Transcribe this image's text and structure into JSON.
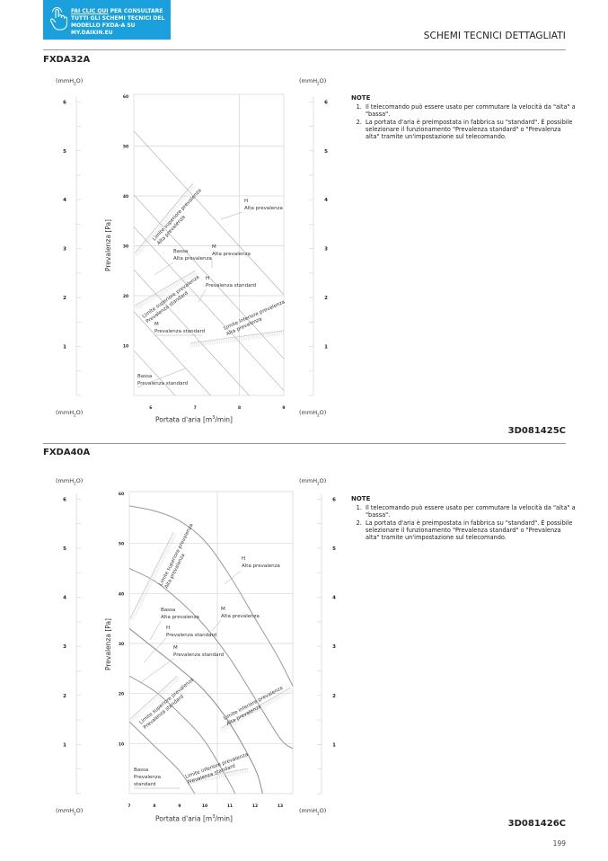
{
  "banner": {
    "link_text": "FAI CLIC QUI",
    "line1_rest": " PER CONSULTARE",
    "line2": "TUTTI GLI SCHEMI TECNICI DEL",
    "line3": "MODELLO FXDA-A SU MY.DAIKIN.EU",
    "icon": "hand-pointer-icon",
    "color": "#1aa0dc"
  },
  "header": {
    "section_title": "SCHEMI TECNICI DETTAGLIATI"
  },
  "page_number": "199",
  "sections": [
    {
      "model": "FXDA32A",
      "code": "3D081425C",
      "unit_label": "(mmH",
      "unit_sub": "2",
      "unit_end": "O)",
      "notes": {
        "title": "NOTE",
        "items": [
          "Il telecomando può essere usato per commutare la velocità da \"alta\" a \"bassa\".",
          "La portata d'aria è preimpostata in fabbrica su \"standard\". È possibile selezionare il funzionamento \"Prevalenza standard\" o \"Prevalenza alta\" tramite un'impostazione sul telecomando."
        ]
      }
    },
    {
      "model": "FXDA40A",
      "code": "3D081426C",
      "unit_label": "(mmH",
      "unit_sub": "2",
      "unit_end": "O)",
      "notes": {
        "title": "NOTE",
        "items": [
          "Il telecomando può essere usato per commutare la velocità da \"alta\" a \"bassa\".",
          "La portata d'aria è preimpostata in fabbrica su \"standard\". È possibile selezionare il funzionamento \"Prevalenza standard\" o \"Prevalenza alta\" tramite un'impostazione sul telecomando."
        ]
      }
    }
  ],
  "chart_data": [
    {
      "type": "line",
      "title": "FXDA32A",
      "xlabel": "Portata d'aria [m",
      "xlabel_sup": "3",
      "xlabel_end": "/min]",
      "ylabel": "Prevalenza [Pa]",
      "xlim": [
        5.62,
        9
      ],
      "ylim": [
        0,
        60
      ],
      "x_ticks": [
        "6",
        "7",
        "8",
        "9"
      ],
      "y_ticks": [
        "10",
        "20",
        "30",
        "40",
        "50",
        "60"
      ],
      "y2_ticks": [
        "1",
        "2",
        "3",
        "4",
        "5",
        "6"
      ],
      "grid": true,
      "grid_x": [
        8
      ],
      "grid_y": [
        20,
        30,
        40,
        50
      ],
      "curve_color": "#b5b5b5",
      "series": [
        {
          "label": [
            "H",
            "Alta prevalenza"
          ],
          "points": [
            [
              5.62,
              53
            ],
            [
              9,
              20.2
            ]
          ]
        },
        {
          "label": [
            "M",
            "Alta prevalenza"
          ],
          "points": [
            [
              5.62,
              40.2
            ],
            [
              9,
              7.4
            ]
          ]
        },
        {
          "label": [
            "Bassa",
            "Alta prevalenza"
          ],
          "points": [
            [
              5.62,
              33.8
            ],
            [
              9,
              1
            ]
          ]
        },
        {
          "label": [
            "H",
            "Prevalenza standard"
          ],
          "points": [
            [
              5.62,
              25.2
            ],
            [
              8.22,
              0
            ]
          ]
        },
        {
          "label": [
            "M",
            "Prevalenza standard"
          ],
          "points": [
            [
              5.62,
              16.8
            ],
            [
              7.35,
              0
            ]
          ]
        },
        {
          "label": [
            "Bassa",
            "Prevalenza standard"
          ],
          "points": [
            [
              5.62,
              9
            ],
            [
              6.55,
              0
            ]
          ]
        }
      ],
      "limits": [
        {
          "label": [
            "Limite superiore prevalenza",
            "Alta prevalenza"
          ],
          "points": [
            [
              5.64,
              28.5
            ],
            [
              6.95,
              42.5
            ]
          ]
        },
        {
          "label": [
            "Limite superiore prevalenza",
            "Prevalenza standard"
          ],
          "points": [
            [
              5.64,
              18
            ],
            [
              7,
              25
            ]
          ]
        },
        {
          "label": [
            "Limite inferiore prevalenza",
            "Alta prevalenza"
          ],
          "points": [
            [
              6.9,
              10.5
            ],
            [
              9,
              13
            ]
          ]
        }
      ]
    },
    {
      "type": "line",
      "title": "FXDA40A",
      "xlabel": "Portata d'aria [m",
      "xlabel_sup": "3",
      "xlabel_end": "/min]",
      "ylabel": "Prevalenza [Pa]",
      "xlim": [
        7,
        13.5
      ],
      "ylim": [
        0,
        60
      ],
      "x_ticks": [
        "7",
        "8",
        "9",
        "10",
        "11",
        "12",
        "13"
      ],
      "y_ticks": [
        "10",
        "20",
        "30",
        "40",
        "50",
        "60"
      ],
      "y2_ticks": [
        "1",
        "2",
        "3",
        "4",
        "5",
        "6"
      ],
      "grid": true,
      "grid_x": [
        10.5
      ],
      "grid_y": [
        10,
        20,
        30,
        40,
        50
      ],
      "curve_color": "#9a9a9a",
      "series": [
        {
          "label": [
            "H",
            "Alta prevalenza"
          ],
          "points": [
            [
              7,
              57.5
            ],
            [
              8,
              56.5
            ],
            [
              9,
              54.5
            ],
            [
              10,
              50.5
            ],
            [
              11,
              43.5
            ],
            [
              12,
              35
            ],
            [
              12.6,
              30
            ],
            [
              13,
              26.5
            ],
            [
              13.5,
              21.5
            ]
          ]
        },
        {
          "label": [
            "M",
            "Alta prevalenza"
          ],
          "points": [
            [
              7,
              45
            ],
            [
              8,
              42.5
            ],
            [
              9,
              38.5
            ],
            [
              10,
              33.5
            ],
            [
              11,
              27
            ],
            [
              12,
              19
            ],
            [
              13,
              11
            ],
            [
              13.5,
              9
            ]
          ]
        },
        {
          "label": [
            "Bassa",
            "Alta prevalenza"
          ],
          "points": [
            [
              7,
              33
            ],
            [
              8,
              29
            ],
            [
              9,
              25
            ],
            [
              10,
              20.5
            ],
            [
              11,
              14
            ],
            [
              12,
              5
            ],
            [
              12.3,
              0
            ]
          ]
        },
        {
          "label": [
            "H",
            "Prevalenza standard"
          ],
          "points": [
            [
              7,
              33
            ],
            [
              8,
              29
            ],
            [
              9,
              25
            ],
            [
              10,
              20.5
            ],
            [
              11,
              14
            ],
            [
              12,
              5
            ],
            [
              12.3,
              0
            ]
          ]
        },
        {
          "label": [
            "M",
            "Prevalenza standard"
          ],
          "points": [
            [
              7,
              23.5
            ],
            [
              8,
              20.5
            ],
            [
              9,
              16
            ],
            [
              10,
              10.5
            ],
            [
              11,
              2
            ],
            [
              11.2,
              0
            ]
          ]
        },
        {
          "label": [
            "Bassa",
            "Prevalenza",
            "standard"
          ],
          "points": [
            [
              7,
              14.4
            ],
            [
              8,
              9.5
            ],
            [
              9,
              4.5
            ],
            [
              9.6,
              0
            ]
          ]
        }
      ],
      "limits": [
        {
          "label": [
            "Limite superiore prevalenza",
            "Alta prevalenza"
          ],
          "points": [
            [
              7.03,
              35
            ],
            [
              8.75,
              52.2
            ]
          ]
        },
        {
          "label": [
            "Limite superiore prevalenza",
            "Prevalenza standard"
          ],
          "points": [
            [
              7.03,
              14.9
            ],
            [
              8.9,
              23.5
            ]
          ]
        },
        {
          "label": [
            "Limite inferiore prevalenza",
            "Alta prevalenza"
          ],
          "points": [
            [
              10.65,
              13.1
            ],
            [
              13.4,
              21.2
            ]
          ]
        },
        {
          "label": [
            "Limite inferiore prevalenza",
            "Prevalenza standard"
          ],
          "points": [
            [
              9.3,
              2.7
            ],
            [
              11.7,
              5
            ]
          ]
        }
      ]
    }
  ]
}
